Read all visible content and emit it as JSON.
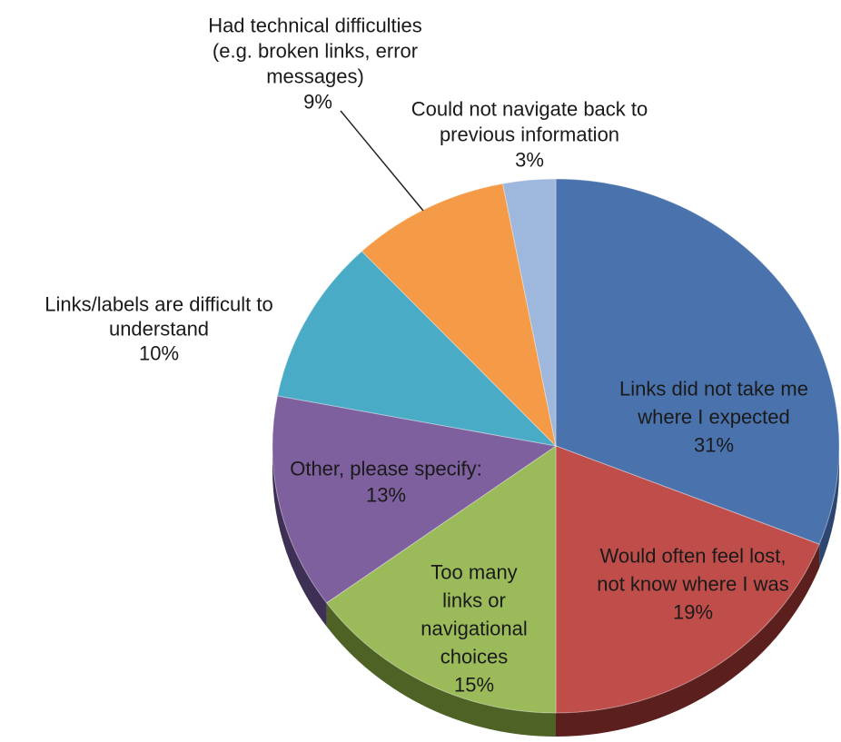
{
  "chart_data": {
    "type": "pie",
    "style": "3d",
    "slices": [
      {
        "label_lines": [
          "Links did not take me",
          "where I expected"
        ],
        "pct_label": "31%",
        "value": 31,
        "color": "#4a72ac",
        "side_color": "#2c4670"
      },
      {
        "label_lines": [
          "Would often feel lost,",
          "not know where I was"
        ],
        "pct_label": "19%",
        "value": 19,
        "color": "#bf4e4b",
        "side_color": "#5b1f1d"
      },
      {
        "label_lines": [
          "Too many",
          "links or",
          "navigational",
          "choices"
        ],
        "pct_label": "15%",
        "value": 15,
        "color": "#9bba59",
        "side_color": "#4e6226"
      },
      {
        "label_lines": [
          "Other, please specify:"
        ],
        "pct_label": "13%",
        "value": 13,
        "color": "#7d609d",
        "side_color": "#3e2f55"
      },
      {
        "label_lines": [
          "Links/labels are difficult to",
          "understand"
        ],
        "pct_label": "10%",
        "value": 10,
        "color": "#4aabc6",
        "side_color": "#1f5f70"
      },
      {
        "label_lines": [
          "Had technical difficulties",
          "(e.g. broken links, error",
          "messages)"
        ],
        "pct_label": "9%",
        "value": 9,
        "color": "#f59a46",
        "side_color": "#8a4c14"
      },
      {
        "label_lines": [
          "Could not navigate back to",
          "previous information"
        ],
        "pct_label": "3%",
        "value": 3,
        "color": "#9db7dd",
        "side_color": "#5a7296"
      }
    ]
  }
}
